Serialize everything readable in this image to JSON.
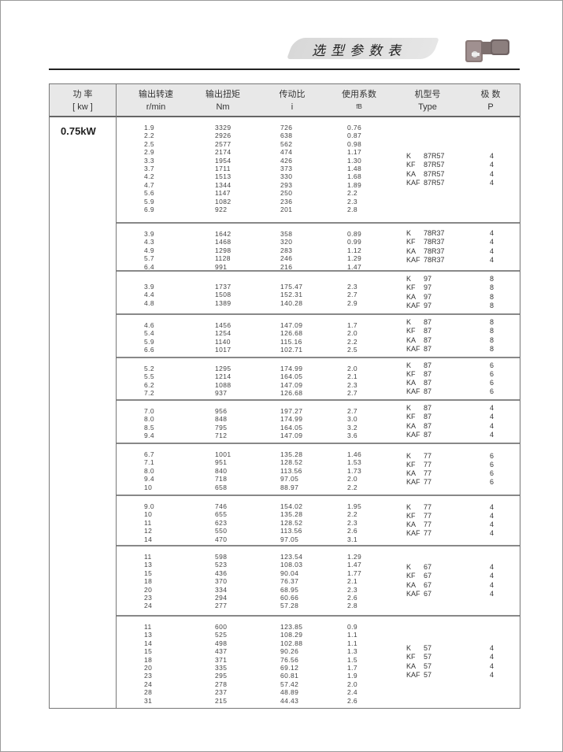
{
  "banner_title": "选型参数表",
  "header": {
    "power": "功 率",
    "power_unit": "[ kw ]",
    "speed": "输出转速",
    "speed_unit": "r/min",
    "torque": "输出扭矩",
    "torque_unit": "Nm",
    "ratio": "传动比",
    "ratio_unit": "i",
    "service": "使用系数",
    "service_unit": "fB",
    "type": "机型号",
    "type_unit": "Type",
    "poles": "极 数",
    "poles_unit": "P"
  },
  "power": "0.75kW",
  "blocks": [
    {
      "rows": [
        [
          "1.9",
          "3329",
          "726",
          "0.76"
        ],
        [
          "2.2",
          "2926",
          "638",
          "0.87"
        ],
        [
          "2.5",
          "2577",
          "562",
          "0.98"
        ],
        [
          "2.9",
          "2174",
          "474",
          "1.17"
        ],
        [
          "3.3",
          "1954",
          "426",
          "1.30"
        ],
        [
          "3.7",
          "1711",
          "373",
          "1.48"
        ],
        [
          "4.2",
          "1513",
          "330",
          "1.68"
        ],
        [
          "4.7",
          "1344",
          "293",
          "1.89"
        ],
        [
          "5.6",
          "1147",
          "250",
          "2.2"
        ],
        [
          "5.9",
          "1082",
          "236",
          "2.3"
        ],
        [
          "6.9",
          "922",
          "201",
          "2.8"
        ]
      ],
      "types": [
        [
          "K",
          "87R57",
          "4"
        ],
        [
          "KF",
          "87R57",
          "4"
        ],
        [
          "KA",
          "87R57",
          "4"
        ],
        [
          "KAF",
          "87R57",
          "4"
        ]
      ]
    },
    {
      "rows": [
        [
          "3.9",
          "1642",
          "358",
          "0.89"
        ],
        [
          "4.3",
          "1468",
          "320",
          "0.99"
        ],
        [
          "4.9",
          "1298",
          "283",
          "1.12"
        ],
        [
          "5.7",
          "1128",
          "246",
          "1.29"
        ],
        [
          "6.4",
          "991",
          "216",
          "1.47"
        ]
      ],
      "types": [
        [
          "K",
          "78R37",
          "4"
        ],
        [
          "KF",
          "78R37",
          "4"
        ],
        [
          "KA",
          "78R37",
          "4"
        ],
        [
          "KAF",
          "78R37",
          "4"
        ]
      ]
    },
    {
      "rows": [
        [
          "3.9",
          "1737",
          "175.47",
          "2.3"
        ],
        [
          "4.4",
          "1508",
          "152.31",
          "2.7"
        ],
        [
          "4.8",
          "1389",
          "140.28",
          "2.9"
        ]
      ],
      "types": [
        [
          "K",
          "97",
          "8"
        ],
        [
          "KF",
          "97",
          "8"
        ],
        [
          "KA",
          "97",
          "8"
        ],
        [
          "KAF",
          "97",
          "8"
        ]
      ]
    },
    {
      "rows": [
        [
          "4.6",
          "1456",
          "147.09",
          "1.7"
        ],
        [
          "5.4",
          "1254",
          "126.68",
          "2.0"
        ],
        [
          "5.9",
          "1140",
          "115.16",
          "2.2"
        ],
        [
          "6.6",
          "1017",
          "102.71",
          "2.5"
        ]
      ],
      "types": [
        [
          "K",
          "87",
          "8"
        ],
        [
          "KF",
          "87",
          "8"
        ],
        [
          "KA",
          "87",
          "8"
        ],
        [
          "KAF",
          "87",
          "8"
        ]
      ]
    },
    {
      "rows": [
        [
          "5.2",
          "1295",
          "174.99",
          "2.0"
        ],
        [
          "5.5",
          "1214",
          "164.05",
          "2.1"
        ],
        [
          "6.2",
          "1088",
          "147.09",
          "2.3"
        ],
        [
          "7.2",
          "937",
          "126.68",
          "2.7"
        ]
      ],
      "types": [
        [
          "K",
          "87",
          "6"
        ],
        [
          "KF",
          "87",
          "6"
        ],
        [
          "KA",
          "87",
          "6"
        ],
        [
          "KAF",
          "87",
          "6"
        ]
      ]
    },
    {
      "rows": [
        [
          "7.0",
          "956",
          "197.27",
          "2.7"
        ],
        [
          "8.0",
          "848",
          "174.99",
          "3.0"
        ],
        [
          "8.5",
          "795",
          "164.05",
          "3.2"
        ],
        [
          "9.4",
          "712",
          "147.09",
          "3.6"
        ]
      ],
      "types": [
        [
          "K",
          "87",
          "4"
        ],
        [
          "KF",
          "87",
          "4"
        ],
        [
          "KA",
          "87",
          "4"
        ],
        [
          "KAF",
          "87",
          "4"
        ]
      ]
    },
    {
      "rows": [
        [
          "6.7",
          "1001",
          "135.28",
          "1.46"
        ],
        [
          "7.1",
          "951",
          "128.52",
          "1.53"
        ],
        [
          "8.0",
          "840",
          "113.56",
          "1.73"
        ],
        [
          "9.4",
          "718",
          "97.05",
          "2.0"
        ],
        [
          "10",
          "658",
          "88.97",
          "2.2"
        ]
      ],
      "types": [
        [
          "K",
          "77",
          "6"
        ],
        [
          "KF",
          "77",
          "6"
        ],
        [
          "KA",
          "77",
          "6"
        ],
        [
          "KAF",
          "77",
          "6"
        ]
      ]
    },
    {
      "rows": [
        [
          "9.0",
          "746",
          "154.02",
          "1.95"
        ],
        [
          "10",
          "655",
          "135.28",
          "2.2"
        ],
        [
          "11",
          "623",
          "128.52",
          "2.3"
        ],
        [
          "12",
          "550",
          "113.56",
          "2.6"
        ],
        [
          "14",
          "470",
          "97.05",
          "3.1"
        ]
      ],
      "types": [
        [
          "K",
          "77",
          "4"
        ],
        [
          "KF",
          "77",
          "4"
        ],
        [
          "KA",
          "77",
          "4"
        ],
        [
          "KAF",
          "77",
          "4"
        ]
      ]
    },
    {
      "rows": [
        [
          "11",
          "598",
          "123.54",
          "1.29"
        ],
        [
          "13",
          "523",
          "108.03",
          "1.47"
        ],
        [
          "15",
          "436",
          "90.04",
          "1.77"
        ],
        [
          "18",
          "370",
          "76.37",
          "2.1"
        ],
        [
          "20",
          "334",
          "68.95",
          "2.3"
        ],
        [
          "23",
          "294",
          "60.66",
          "2.6"
        ],
        [
          "24",
          "277",
          "57.28",
          "2.8"
        ]
      ],
      "types": [
        [
          "K",
          "67",
          "4"
        ],
        [
          "KF",
          "67",
          "4"
        ],
        [
          "KA",
          "67",
          "4"
        ],
        [
          "KAF",
          "67",
          "4"
        ]
      ]
    },
    {
      "rows": [
        [
          "11",
          "600",
          "123.85",
          "0.9"
        ],
        [
          "13",
          "525",
          "108.29",
          "1.1"
        ],
        [
          "14",
          "498",
          "102.88",
          "1.1"
        ],
        [
          "15",
          "437",
          "90.26",
          "1.3"
        ],
        [
          "18",
          "371",
          "76.56",
          "1.5"
        ],
        [
          "20",
          "335",
          "69.12",
          "1.7"
        ],
        [
          "23",
          "295",
          "60.81",
          "1.9"
        ],
        [
          "24",
          "278",
          "57.42",
          "2.0"
        ],
        [
          "28",
          "237",
          "48.89",
          "2.4"
        ],
        [
          "31",
          "215",
          "44.43",
          "2.6"
        ]
      ],
      "types": [
        [
          "K",
          "57",
          "4"
        ],
        [
          "KF",
          "57",
          "4"
        ],
        [
          "KA",
          "57",
          "4"
        ],
        [
          "KAF",
          "57",
          "4"
        ]
      ]
    }
  ]
}
